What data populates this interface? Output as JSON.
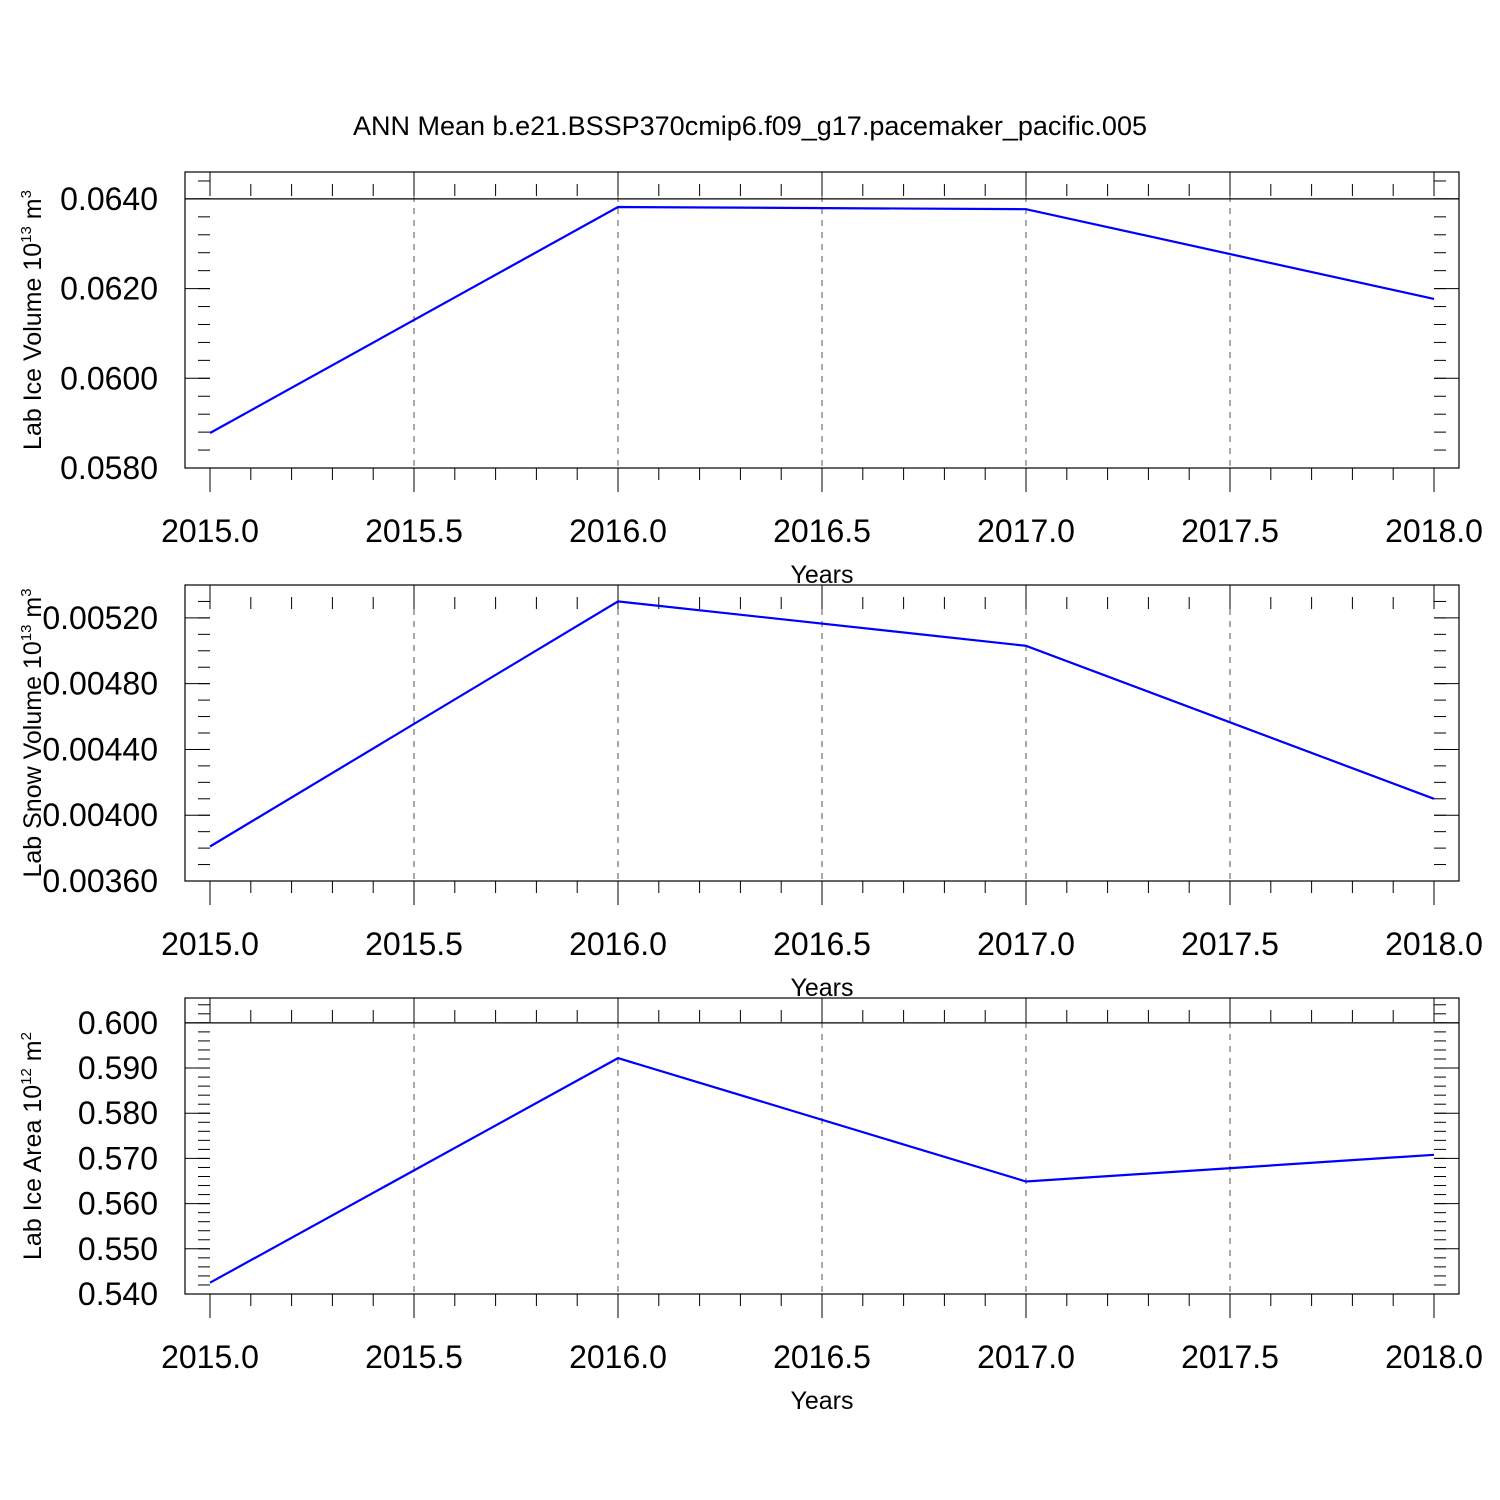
{
  "title": "ANN Mean b.e21.BSSP370cmip6.f09_g17.pacemaker_pacific.005",
  "colors": {
    "line": "#0000ff",
    "axes": "#000000",
    "grid": "#555555"
  },
  "chart_data": [
    {
      "type": "line",
      "xlabel": "Years",
      "ylabel": "Lab Ice Volume 10",
      "ylabel_exp": "13",
      "ylabel_unit": "m",
      "ylabel_unit_exp": "3",
      "xlim": [
        2015.0,
        2018.0
      ],
      "ylim": [
        0.058,
        0.0646
      ],
      "xticks": [
        2015.0,
        2015.5,
        2016.0,
        2016.5,
        2017.0,
        2017.5,
        2018.0
      ],
      "xtick_labels": [
        "2015.0",
        "2015.5",
        "2016.0",
        "2016.5",
        "2017.0",
        "2017.5",
        "2018.0"
      ],
      "yticks": [
        0.058,
        0.06,
        0.062,
        0.064
      ],
      "ytick_labels": [
        "0.0580",
        "0.0600",
        "0.0620",
        "0.0640"
      ],
      "yminor_step": 0.0004,
      "ref_y": 0.064,
      "grid": "vertical-dashed",
      "series": [
        {
          "x": [
            2015,
            2016,
            2017,
            2018
          ],
          "values": [
            0.05878,
            0.06382,
            0.06377,
            0.06177
          ]
        }
      ]
    },
    {
      "type": "line",
      "xlabel": "Years",
      "ylabel": "Lab Snow Volume 10",
      "ylabel_exp": "13",
      "ylabel_unit": "m",
      "ylabel_unit_exp": "3",
      "xlim": [
        2015.0,
        2018.0
      ],
      "ylim": [
        0.0036,
        0.0054
      ],
      "xticks": [
        2015.0,
        2015.5,
        2016.0,
        2016.5,
        2017.0,
        2017.5,
        2018.0
      ],
      "xtick_labels": [
        "2015.0",
        "2015.5",
        "2016.0",
        "2016.5",
        "2017.0",
        "2017.5",
        "2018.0"
      ],
      "yticks": [
        0.0036,
        0.004,
        0.0044,
        0.0048,
        0.0052
      ],
      "ytick_labels": [
        "0.00360",
        "0.00400",
        "0.00440",
        "0.00480",
        "0.00520"
      ],
      "yminor_step": 0.0001,
      "ref_y": null,
      "grid": "vertical-dashed",
      "series": [
        {
          "x": [
            2015,
            2016,
            2017,
            2018
          ],
          "values": [
            0.00381,
            0.0053,
            0.00503,
            0.0041
          ]
        }
      ]
    },
    {
      "type": "line",
      "xlabel": "Years",
      "ylabel": "Lab Ice Area 10",
      "ylabel_exp": "12",
      "ylabel_unit": "m",
      "ylabel_unit_exp": "2",
      "xlim": [
        2015.0,
        2018.0
      ],
      "ylim": [
        0.54,
        0.6055
      ],
      "xticks": [
        2015.0,
        2015.5,
        2016.0,
        2016.5,
        2017.0,
        2017.5,
        2018.0
      ],
      "xtick_labels": [
        "2015.0",
        "2015.5",
        "2016.0",
        "2016.5",
        "2017.0",
        "2017.5",
        "2018.0"
      ],
      "yticks": [
        0.54,
        0.55,
        0.56,
        0.57,
        0.58,
        0.59,
        0.6
      ],
      "ytick_labels": [
        "0.540",
        "0.550",
        "0.560",
        "0.570",
        "0.580",
        "0.590",
        "0.600"
      ],
      "yminor_step": 0.002,
      "ref_y": 0.6,
      "grid": "vertical-dashed",
      "series": [
        {
          "x": [
            2015,
            2016,
            2017,
            2018
          ],
          "values": [
            0.5425,
            0.5922,
            0.5649,
            0.5708
          ]
        }
      ]
    }
  ]
}
